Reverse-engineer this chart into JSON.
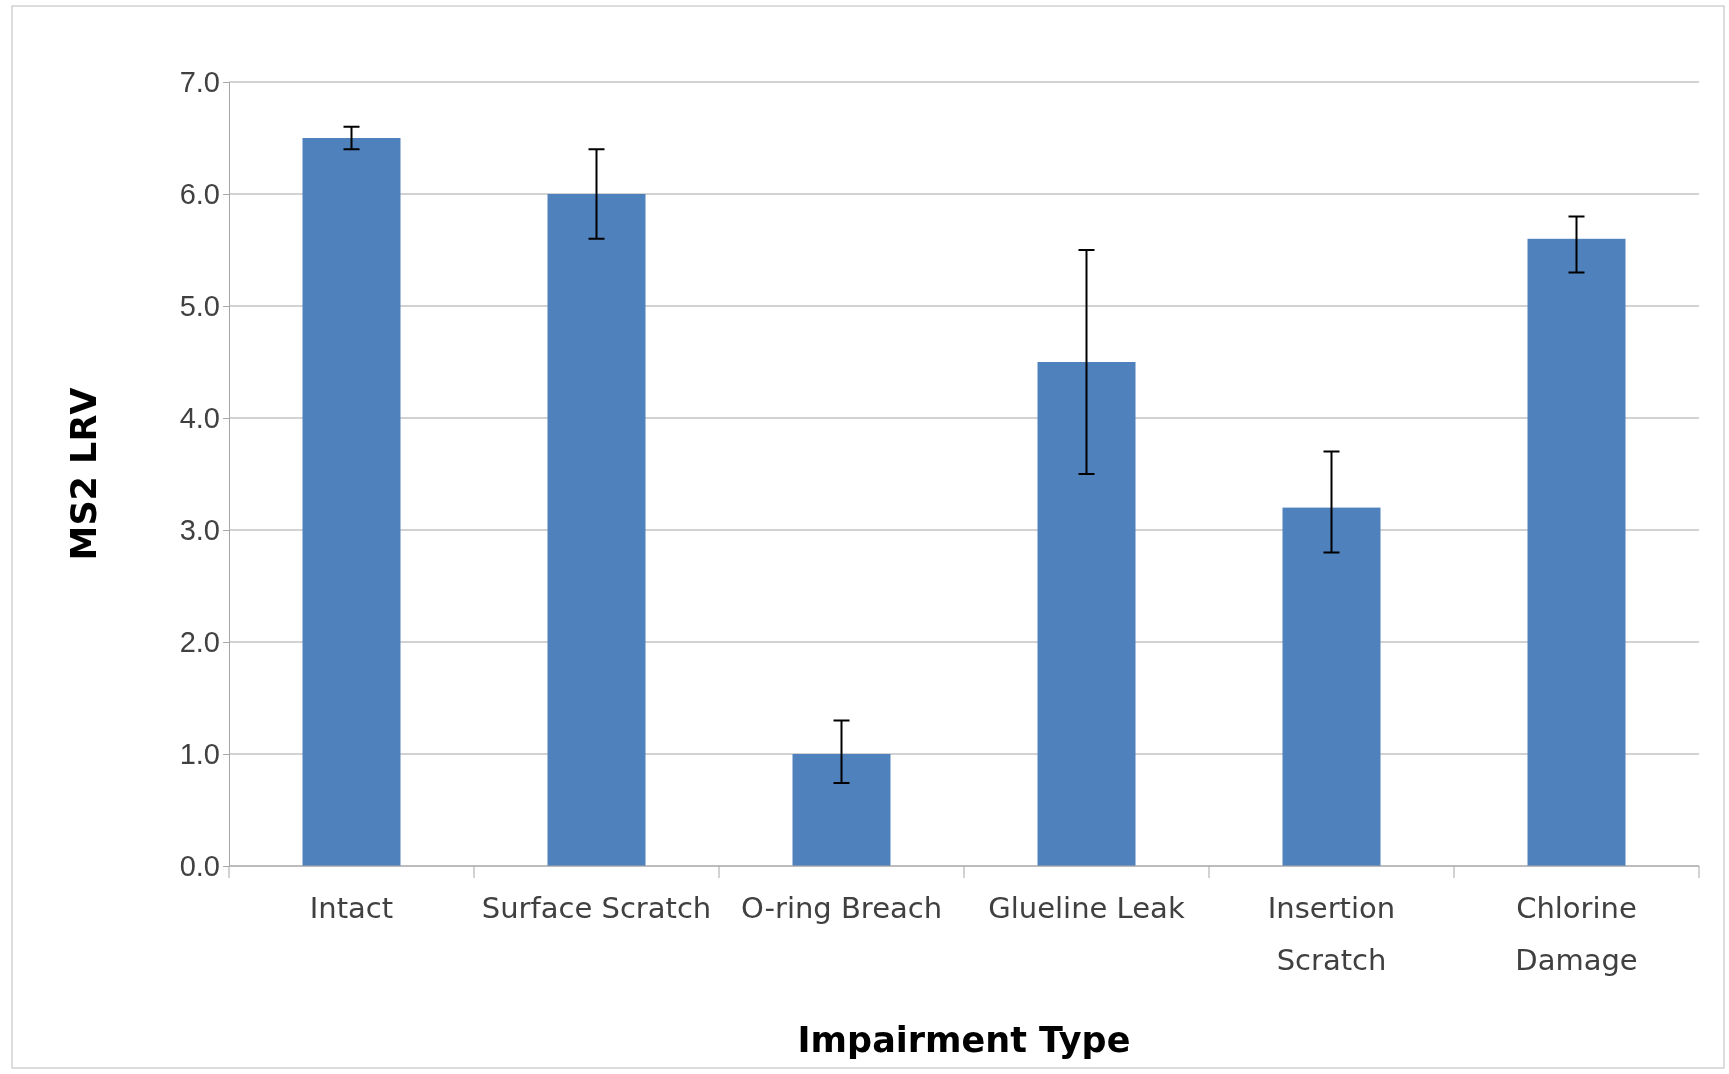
{
  "chart_data": {
    "type": "bar",
    "xlabel": "Impairment Type",
    "ylabel": "MS2 LRV",
    "categories": [
      "Intact",
      "Surface Scratch",
      "O-ring Breach",
      "Glueline Leak",
      "Insertion Scratch",
      "Chlorine Damage"
    ],
    "values": [
      6.5,
      6.0,
      1.0,
      4.5,
      3.2,
      5.6
    ],
    "errors": [
      [
        6.4,
        6.6
      ],
      [
        5.6,
        6.4
      ],
      [
        0.74,
        1.3
      ],
      [
        3.5,
        5.5
      ],
      [
        2.8,
        3.7
      ],
      [
        5.3,
        5.8
      ]
    ],
    "color": "#4f81bd",
    "ylim": [
      0,
      7
    ],
    "yticks": [
      {
        "value": 0,
        "label": "0.0"
      },
      {
        "value": 1,
        "label": "1.0"
      },
      {
        "value": 2,
        "label": "2.0"
      },
      {
        "value": 3,
        "label": "3.0"
      },
      {
        "value": 4,
        "label": "4.0"
      },
      {
        "value": 5,
        "label": "5.0"
      },
      {
        "value": 6,
        "label": "6.0"
      },
      {
        "value": 7,
        "label": "7.0"
      }
    ],
    "grid": "y"
  }
}
